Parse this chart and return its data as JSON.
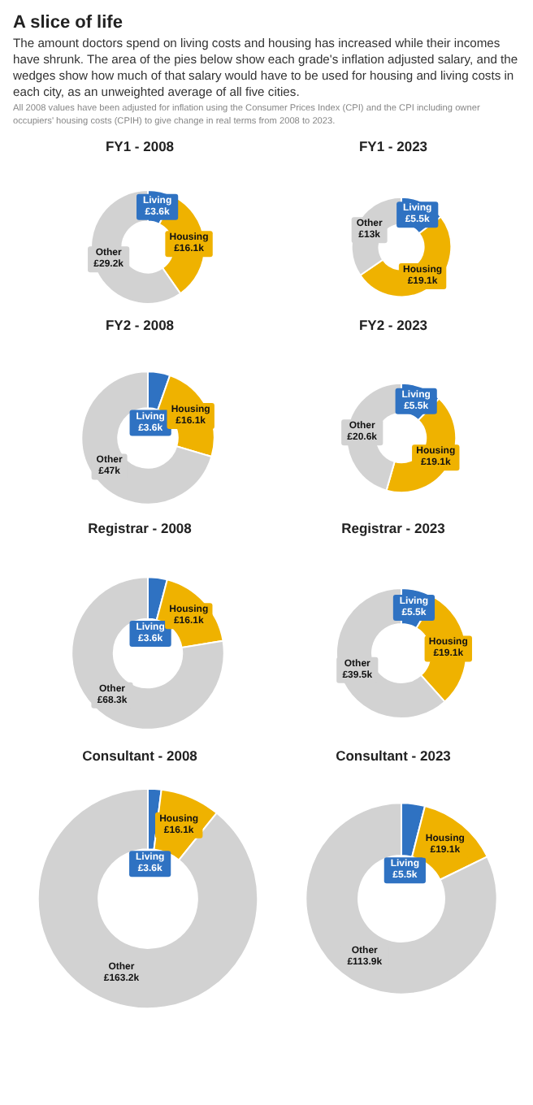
{
  "chart_data": [
    {
      "type": "other",
      "title": "A slice of life",
      "subtitle": "The amount doctors spend on living costs and housing has increased while their incomes have shrunk. The area of the pies below show each grade's inflation adjusted salary, and the wedges show how much of that salary would have to be used for housing and living costs in each city, as an unweighted average of all five cities.",
      "annotations": [
        "All 2008 values have been adjusted for inflation using the Consumer Prices Index (CPI) and the CPI including owner occupiers' housing costs (CPIH) to give change in real terms from 2008 to 2023."
      ]
    },
    {
      "type": "donut",
      "title": "FY1 - 2008",
      "categories": [
        "Living",
        "Housing",
        "Other"
      ],
      "values": [
        3.6,
        16.1,
        29.2
      ],
      "value_labels": [
        "£3.6k",
        "£16.1k",
        "£29.2k"
      ],
      "colors": [
        "#2f72c2",
        "#efb200",
        "#d2d2d2"
      ],
      "legend": false
    },
    {
      "type": "donut",
      "title": "FY1 - 2023",
      "categories": [
        "Living",
        "Housing",
        "Other"
      ],
      "values": [
        5.5,
        19.1,
        13
      ],
      "value_labels": [
        "£5.5k",
        "£19.1k",
        "£13k"
      ],
      "colors": [
        "#2f72c2",
        "#efb200",
        "#d2d2d2"
      ],
      "legend": false
    },
    {
      "type": "donut",
      "title": "FY2 - 2008",
      "categories": [
        "Living",
        "Housing",
        "Other"
      ],
      "values": [
        3.6,
        16.1,
        47
      ],
      "value_labels": [
        "£3.6k",
        "£16.1k",
        "£47k"
      ],
      "colors": [
        "#2f72c2",
        "#efb200",
        "#d2d2d2"
      ],
      "legend": false
    },
    {
      "type": "donut",
      "title": "FY2 - 2023",
      "categories": [
        "Living",
        "Housing",
        "Other"
      ],
      "values": [
        5.5,
        19.1,
        20.6
      ],
      "value_labels": [
        "£5.5k",
        "£19.1k",
        "£20.6k"
      ],
      "colors": [
        "#2f72c2",
        "#efb200",
        "#d2d2d2"
      ],
      "legend": false
    },
    {
      "type": "donut",
      "title": "Registrar - 2008",
      "categories": [
        "Living",
        "Housing",
        "Other"
      ],
      "values": [
        3.6,
        16.1,
        68.3
      ],
      "value_labels": [
        "£3.6k",
        "£16.1k",
        "£68.3k"
      ],
      "colors": [
        "#2f72c2",
        "#efb200",
        "#d2d2d2"
      ],
      "legend": false
    },
    {
      "type": "donut",
      "title": "Registrar - 2023",
      "categories": [
        "Living",
        "Housing",
        "Other"
      ],
      "values": [
        5.5,
        19.1,
        39.5
      ],
      "value_labels": [
        "£5.5k",
        "£19.1k",
        "£39.5k"
      ],
      "colors": [
        "#2f72c2",
        "#efb200",
        "#d2d2d2"
      ],
      "legend": false
    },
    {
      "type": "donut",
      "title": "Consultant - 2008",
      "categories": [
        "Living",
        "Housing",
        "Other"
      ],
      "values": [
        3.6,
        16.1,
        163.2
      ],
      "value_labels": [
        "£3.6k",
        "£16.1k",
        "£163.2k"
      ],
      "colors": [
        "#2f72c2",
        "#efb200",
        "#d2d2d2"
      ],
      "legend": false
    },
    {
      "type": "donut",
      "title": "Consultant - 2023",
      "categories": [
        "Living",
        "Housing",
        "Other"
      ],
      "values": [
        5.5,
        19.1,
        113.9
      ],
      "value_labels": [
        "£5.5k",
        "£19.1k",
        "£113.9k"
      ],
      "colors": [
        "#2f72c2",
        "#efb200",
        "#d2d2d2"
      ],
      "legend": false
    }
  ]
}
